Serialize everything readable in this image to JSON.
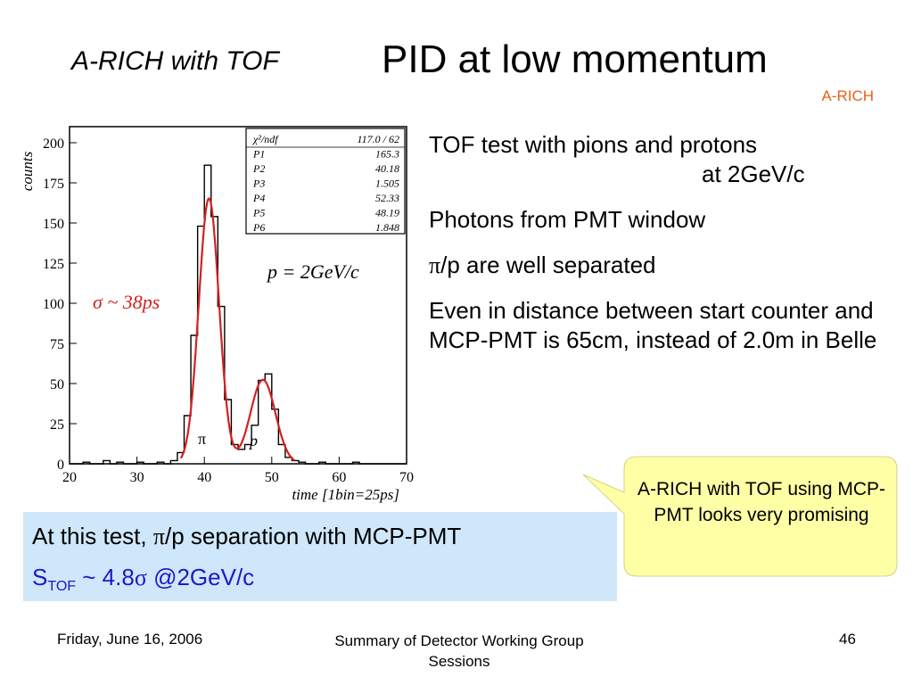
{
  "slide": {
    "title_sub": "A-RICH with TOF",
    "title_main": "PID at low momentum",
    "corner_tag": "A-RICH"
  },
  "bullets": {
    "b1_line1": "TOF test with pions and protons",
    "b1_line2": "at 2GeV/c",
    "b2": "Photons from PMT window",
    "b3_symbol": "π",
    "b3_rest": "/p are well separated",
    "b4": "Even in distance between start counter and MCP-PMT is 65cm, instead of 2.0m in Belle"
  },
  "summary": {
    "line1_prefix": "At this test, ",
    "line1_symbol": "π",
    "line1_rest": "/p separation with MCP-PMT",
    "line2_s": "S",
    "line2_sub": "TOF",
    "line2_mid": " ~ 4.8",
    "line2_symbol": "σ",
    "line2_rest": " @2GeV/c"
  },
  "callout": {
    "text": "A-RICH with TOF using MCP-PMT looks very promising"
  },
  "footer": {
    "date": "Friday, June 16, 2006",
    "center": "Summary of Detector Working Group  Sessions",
    "page": "46"
  },
  "colors": {
    "corner_tag": "#e8611a",
    "summary_bg": "#cfe7fb",
    "summary_accent": "#1a1ac8",
    "callout_bg": "#ffffa6",
    "fit_curve": "#d42020",
    "histogram": "#000000"
  },
  "chart_data": {
    "type": "histogram",
    "xlabel": "time [1bin=25ps]",
    "ylabel": "counts",
    "xlim": [
      20,
      70
    ],
    "ylim": [
      0,
      210
    ],
    "x_ticks": [
      20,
      30,
      40,
      50,
      60,
      70
    ],
    "y_ticks": [
      0,
      25,
      50,
      75,
      100,
      125,
      150,
      175,
      200
    ],
    "histogram": {
      "x": [
        20,
        21,
        22,
        23,
        24,
        25,
        26,
        27,
        28,
        29,
        30,
        31,
        32,
        33,
        34,
        35,
        36,
        37,
        38,
        39,
        40,
        41,
        42,
        43,
        44,
        45,
        46,
        47,
        48,
        49,
        50,
        51,
        52,
        53,
        54,
        55,
        56,
        57,
        58,
        59,
        60,
        61,
        62,
        63,
        64,
        65,
        66,
        67,
        68,
        69
      ],
      "counts": [
        0,
        0,
        1,
        0,
        0,
        2,
        0,
        1,
        0,
        0,
        1,
        0,
        0,
        1,
        0,
        2,
        7,
        30,
        80,
        148,
        186,
        154,
        98,
        40,
        12,
        9,
        12,
        24,
        52,
        56,
        34,
        12,
        4,
        2,
        1,
        0,
        0,
        1,
        0,
        0,
        0,
        0,
        1,
        0,
        0,
        0,
        0,
        0,
        0,
        0
      ]
    },
    "fit": {
      "function": "double gaussian",
      "peaks": [
        {
          "amplitude": 165.3,
          "mean": 40.18,
          "sigma": 1.505
        },
        {
          "amplitude": 52.33,
          "mean": 48.19,
          "sigma": 1.848
        }
      ]
    },
    "stats_box": {
      "rows": [
        {
          "label": "χ²/ndf",
          "value": "117.0   /   62"
        },
        {
          "label": "P1",
          "value": "165.3"
        },
        {
          "label": "P2",
          "value": "40.18"
        },
        {
          "label": "P3",
          "value": "1.505"
        },
        {
          "label": "P4",
          "value": "52.33"
        },
        {
          "label": "P5",
          "value": "48.19"
        },
        {
          "label": "P6",
          "value": "1.848"
        }
      ]
    },
    "annotations": {
      "sigma_label": "σ ~ 38ps",
      "momentum_label": "p = 2GeV/c",
      "pion_label": "π",
      "proton_label": "p"
    }
  }
}
